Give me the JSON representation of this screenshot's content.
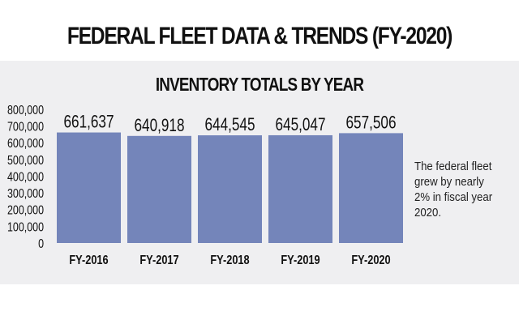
{
  "header": {
    "title": "FEDERAL FLEET DATA & TRENDS (FY-2020)"
  },
  "chart_data": {
    "type": "bar",
    "title": "INVENTORY TOTALS BY YEAR",
    "categories": [
      "FY-2016",
      "FY-2017",
      "FY-2018",
      "FY-2019",
      "FY-2020"
    ],
    "values": [
      661637,
      640918,
      644545,
      645047,
      657506
    ],
    "data_labels": [
      "661,637",
      "640,918",
      "644,545",
      "645,047",
      "657,506"
    ],
    "xlabel": "",
    "ylabel": "",
    "ylim": [
      0,
      800000
    ],
    "yticks": [
      0,
      100000,
      200000,
      300000,
      400000,
      500000,
      600000,
      700000,
      800000
    ],
    "ytick_labels": [
      "0",
      "100,000",
      "200,000",
      "300,000",
      "400,000",
      "500,000",
      "600,000",
      "700,000",
      "800,000"
    ],
    "grid": false,
    "legend": "none",
    "bar_color": "#7485ba",
    "annotation": "The federal fleet grew by nearly 2% in fiscal year 2020."
  },
  "colors": {
    "panel_bg": "#efeff1",
    "bar": "#7485ba",
    "text": "#111111"
  }
}
